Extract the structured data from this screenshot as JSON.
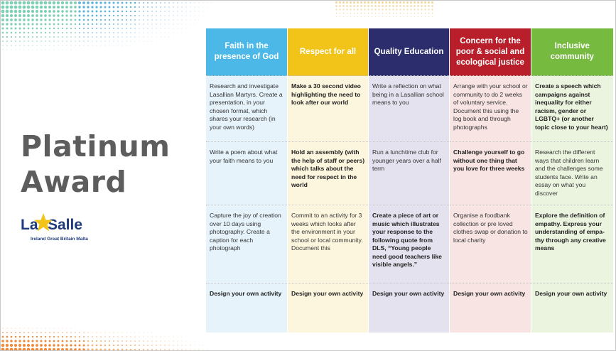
{
  "title": {
    "line1": "Platinum",
    "line2": "Award"
  },
  "logo": {
    "part1": "La",
    "part2": "Salle",
    "subtitle": "Ireland  Great Britain  Malta"
  },
  "colors": {
    "col1_header": "#4bb8e8",
    "col2_header": "#f2c41a",
    "col3_header": "#2c2d6c",
    "col4_header": "#b81f2b",
    "col5_header": "#76bb3f",
    "col1_bg": "#e6f3fb",
    "col2_bg": "#fdf6de",
    "col3_bg": "#e3e2ee",
    "col4_bg": "#f7e4e3",
    "col5_bg": "#ebf4df",
    "title": "#5d5d5d"
  },
  "columns": [
    {
      "header": "Faith in the presence of God",
      "cells": [
        {
          "text": "Research and investigate Lasallian Martyrs. Create a presentation, in your chosen format, which shares your research (in your own words)",
          "bold": false
        },
        {
          "text": "Write a poem about what your faith means to you",
          "bold": false
        },
        {
          "text": "Capture the joy of creation over 10 days using photography. Create a caption for each photograph",
          "bold": false
        },
        {
          "text": "Design your own activity",
          "bold": true
        }
      ]
    },
    {
      "header": "Respect for all",
      "cells": [
        {
          "text": "Make a 30 second video highlighting the need to look after our world",
          "bold": true
        },
        {
          "text": "Hold an assembly (with the help of staff or peers) which talks about the need for respect in the world",
          "bold": true
        },
        {
          "text": "Commit to an activity for 3 weeks which looks after the environment in your school or local community. Document this",
          "bold": false
        },
        {
          "text": "Design your own activity",
          "bold": true
        }
      ]
    },
    {
      "header": "Quality Education",
      "cells": [
        {
          "text": "Write a reflection on what being in a Lasallian school means to you",
          "bold": false
        },
        {
          "text": "Run a lunchtime club for younger years over a half term",
          "bold": false
        },
        {
          "text": "Create a piece of art or music which illustrates your response to the following quote from DLS, “Young people need good teachers like visible angels.”",
          "bold": true
        },
        {
          "text": "Design your own activity",
          "bold": true
        }
      ]
    },
    {
      "header": "Concern for the poor & social and ecological justice",
      "cells": [
        {
          "text": "Arrange with your school or community to do 2 weeks of voluntary service. Document this using the log book and through photographs",
          "bold": false
        },
        {
          "text": "Challenge yourself to go without one thing that you love for three weeks",
          "bold": true
        },
        {
          "text": "Organise a foodbank collection or pre loved clothes swap or donation to local charity",
          "bold": false
        },
        {
          "text": "Design your own activity",
          "bold": true
        }
      ]
    },
    {
      "header": "Inclusive community",
      "cells": [
        {
          "text": "Create a speech which campaigns against inequality for either racism, gender or LGBTQ+ (or another topic close to your heart)",
          "bold": true
        },
        {
          "text": "Research the different ways that children learn and the challenges some students face. Write an essay on what you discover",
          "bold": false
        },
        {
          "text": "Explore the definition of empathy. Express your understanding of empa-thy through any creative means",
          "bold": true
        },
        {
          "text": "Design your own activity",
          "bold": true
        }
      ]
    }
  ]
}
